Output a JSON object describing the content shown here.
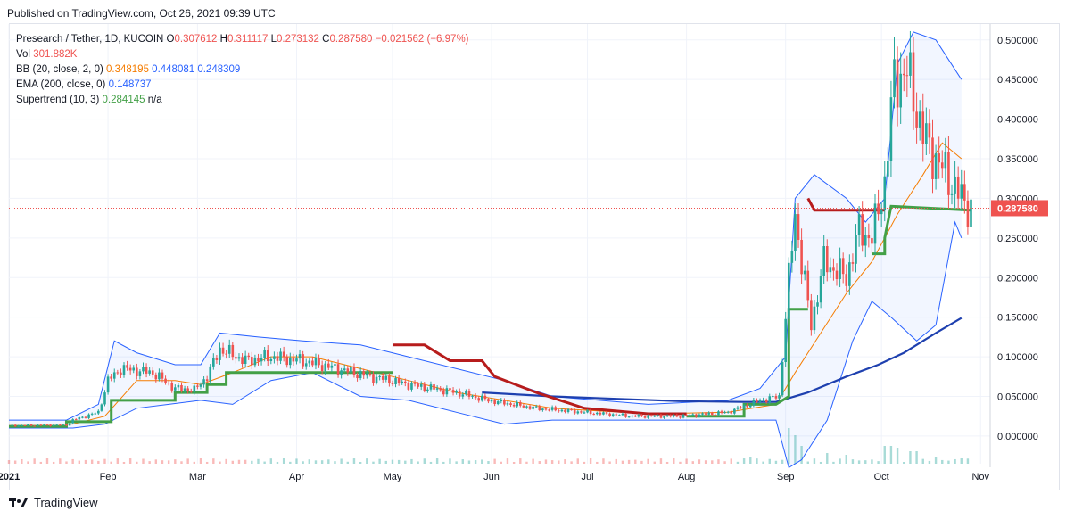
{
  "header": {
    "published": "Published on TradingView.com, Oct 26, 2021 09:39 UTC"
  },
  "legend": {
    "symbol": "Presearch / Tether, 1D, KUCOIN",
    "o_label": "O",
    "o": "0.307612",
    "h_label": "H",
    "h": "0.311117",
    "l_label": "L",
    "l": "0.273132",
    "c_label": "C",
    "c": "0.287580",
    "change": "−0.021562 (−6.97%)",
    "vol_label": "Vol",
    "vol": "301.882K",
    "bb_label": "BB (20, close, 2, 0)",
    "bb_basis": "0.348195",
    "bb_upper": "0.448081",
    "bb_lower": "0.248309",
    "ema_label": "EMA (200, close, 0)",
    "ema": "0.148737",
    "st_label": "Supertrend (10, 3)",
    "st": "0.284145",
    "st_na": "n/a"
  },
  "footer": {
    "brand": "TradingView"
  },
  "colors": {
    "up": "#26a69a",
    "down": "#ef5350",
    "bb": "#2962ff",
    "basis": "#f57c00",
    "ema": "#1e40af",
    "st_up": "#43a047",
    "st_down": "#b71c1c",
    "last": "#ef5350"
  },
  "chart_data": {
    "type": "candlestick",
    "y_ticks": [
      "0.500000",
      "0.450000",
      "0.400000",
      "0.350000",
      "0.300000",
      "0.250000",
      "0.200000",
      "0.150000",
      "0.100000",
      "0.050000",
      "0.000000"
    ],
    "y_tick_values": [
      0.5,
      0.45,
      0.4,
      0.35,
      0.3,
      0.25,
      0.2,
      0.15,
      0.1,
      0.05,
      0.0
    ],
    "ylim": [
      -0.035,
      0.52
    ],
    "x_ticks": [
      "2021",
      "Feb",
      "Mar",
      "Apr",
      "May",
      "Jun",
      "Jul",
      "Aug",
      "Sep",
      "Oct",
      "Nov"
    ],
    "x_tick_days": [
      0,
      31,
      59,
      90,
      120,
      151,
      181,
      212,
      243,
      273,
      304
    ],
    "x_range_days": [
      0,
      307
    ],
    "last_price_label": "0.287580",
    "last_price": 0.28758,
    "price_path": [
      [
        0,
        0.013
      ],
      [
        18,
        0.014
      ],
      [
        20,
        0.02
      ],
      [
        28,
        0.03
      ],
      [
        31,
        0.07
      ],
      [
        35,
        0.085
      ],
      [
        45,
        0.08
      ],
      [
        52,
        0.06
      ],
      [
        58,
        0.058
      ],
      [
        62,
        0.075
      ],
      [
        66,
        0.11
      ],
      [
        74,
        0.095
      ],
      [
        82,
        0.1
      ],
      [
        92,
        0.095
      ],
      [
        110,
        0.078
      ],
      [
        125,
        0.065
      ],
      [
        140,
        0.055
      ],
      [
        150,
        0.045
      ],
      [
        165,
        0.035
      ],
      [
        180,
        0.03
      ],
      [
        195,
        0.025
      ],
      [
        210,
        0.025
      ],
      [
        225,
        0.03
      ],
      [
        235,
        0.045
      ],
      [
        241,
        0.05
      ],
      [
        244,
        0.2
      ],
      [
        246,
        0.28
      ],
      [
        248,
        0.22
      ],
      [
        251,
        0.14
      ],
      [
        255,
        0.22
      ],
      [
        262,
        0.2
      ],
      [
        266,
        0.26
      ],
      [
        270,
        0.25
      ],
      [
        274,
        0.32
      ],
      [
        277,
        0.45
      ],
      [
        281,
        0.46
      ],
      [
        286,
        0.38
      ],
      [
        290,
        0.35
      ],
      [
        295,
        0.32
      ],
      [
        298,
        0.3
      ],
      [
        301,
        0.2876
      ]
    ],
    "bb_upper_path": [
      [
        0,
        0.02
      ],
      [
        18,
        0.02
      ],
      [
        28,
        0.04
      ],
      [
        33,
        0.12
      ],
      [
        40,
        0.105
      ],
      [
        52,
        0.09
      ],
      [
        60,
        0.09
      ],
      [
        66,
        0.13
      ],
      [
        78,
        0.125
      ],
      [
        92,
        0.12
      ],
      [
        110,
        0.115
      ],
      [
        125,
        0.1
      ],
      [
        140,
        0.085
      ],
      [
        155,
        0.07
      ],
      [
        170,
        0.05
      ],
      [
        200,
        0.04
      ],
      [
        225,
        0.045
      ],
      [
        235,
        0.06
      ],
      [
        243,
        0.1
      ],
      [
        246,
        0.3
      ],
      [
        252,
        0.33
      ],
      [
        262,
        0.3
      ],
      [
        268,
        0.27
      ],
      [
        274,
        0.3
      ],
      [
        278,
        0.47
      ],
      [
        283,
        0.51
      ],
      [
        290,
        0.5
      ],
      [
        298,
        0.45
      ]
    ],
    "bb_lower_path": [
      [
        0,
        0.01
      ],
      [
        20,
        0.01
      ],
      [
        30,
        0.015
      ],
      [
        40,
        0.035
      ],
      [
        50,
        0.04
      ],
      [
        60,
        0.045
      ],
      [
        70,
        0.04
      ],
      [
        82,
        0.07
      ],
      [
        95,
        0.08
      ],
      [
        110,
        0.05
      ],
      [
        125,
        0.045
      ],
      [
        140,
        0.03
      ],
      [
        155,
        0.015
      ],
      [
        170,
        0.02
      ],
      [
        200,
        0.02
      ],
      [
        225,
        0.02
      ],
      [
        240,
        0.02
      ],
      [
        244,
        -0.04
      ],
      [
        248,
        -0.03
      ],
      [
        256,
        0.02
      ],
      [
        264,
        0.12
      ],
      [
        270,
        0.17
      ],
      [
        276,
        0.15
      ],
      [
        284,
        0.12
      ],
      [
        290,
        0.14
      ],
      [
        296,
        0.27
      ],
      [
        298,
        0.25
      ]
    ],
    "bb_basis_path": [
      [
        0,
        0.015
      ],
      [
        20,
        0.015
      ],
      [
        30,
        0.025
      ],
      [
        40,
        0.07
      ],
      [
        52,
        0.07
      ],
      [
        60,
        0.065
      ],
      [
        70,
        0.08
      ],
      [
        82,
        0.1
      ],
      [
        95,
        0.1
      ],
      [
        110,
        0.085
      ],
      [
        125,
        0.07
      ],
      [
        140,
        0.055
      ],
      [
        155,
        0.045
      ],
      [
        170,
        0.035
      ],
      [
        200,
        0.028
      ],
      [
        225,
        0.03
      ],
      [
        240,
        0.04
      ],
      [
        246,
        0.08
      ],
      [
        254,
        0.13
      ],
      [
        262,
        0.18
      ],
      [
        270,
        0.22
      ],
      [
        278,
        0.28
      ],
      [
        286,
        0.33
      ],
      [
        292,
        0.37
      ],
      [
        298,
        0.35
      ]
    ],
    "ema_path": [
      [
        148,
        0.055
      ],
      [
        170,
        0.05
      ],
      [
        190,
        0.047
      ],
      [
        210,
        0.044
      ],
      [
        230,
        0.043
      ],
      [
        240,
        0.043
      ],
      [
        250,
        0.055
      ],
      [
        262,
        0.075
      ],
      [
        272,
        0.09
      ],
      [
        280,
        0.105
      ],
      [
        290,
        0.13
      ],
      [
        298,
        0.149
      ]
    ],
    "st_up_segments": [
      [
        [
          0,
          0.012
        ],
        [
          18,
          0.012
        ],
        [
          18,
          0.018
        ],
        [
          32,
          0.018
        ],
        [
          32,
          0.045
        ],
        [
          52,
          0.045
        ],
        [
          52,
          0.055
        ],
        [
          62,
          0.055
        ],
        [
          62,
          0.065
        ],
        [
          68,
          0.065
        ],
        [
          68,
          0.08
        ],
        [
          75,
          0.08
        ],
        [
          120,
          0.08
        ]
      ],
      [
        [
          212,
          0.025
        ],
        [
          230,
          0.025
        ],
        [
          230,
          0.04
        ],
        [
          240,
          0.04
        ],
        [
          244,
          0.05
        ],
        [
          244,
          0.16
        ],
        [
          250,
          0.16
        ]
      ],
      [
        [
          270,
          0.23
        ],
        [
          274,
          0.23
        ],
        [
          274,
          0.25
        ],
        [
          276,
          0.29
        ],
        [
          301,
          0.285
        ]
      ]
    ],
    "st_down_segments": [
      [
        [
          120,
          0.115
        ],
        [
          130,
          0.115
        ],
        [
          138,
          0.095
        ],
        [
          148,
          0.095
        ],
        [
          152,
          0.075
        ],
        [
          165,
          0.055
        ],
        [
          180,
          0.035
        ],
        [
          200,
          0.028
        ],
        [
          212,
          0.028
        ]
      ],
      [
        [
          250,
          0.3
        ],
        [
          252,
          0.285
        ],
        [
          274,
          0.285
        ]
      ]
    ],
    "volume_spikes": [
      [
        232,
        0.2
      ],
      [
        244,
        1.0
      ],
      [
        246,
        0.8
      ],
      [
        248,
        0.5
      ],
      [
        256,
        0.3
      ],
      [
        262,
        0.25
      ],
      [
        275,
        0.5
      ],
      [
        278,
        0.45
      ],
      [
        283,
        0.35
      ],
      [
        290,
        0.2
      ],
      [
        298,
        0.15
      ]
    ]
  }
}
